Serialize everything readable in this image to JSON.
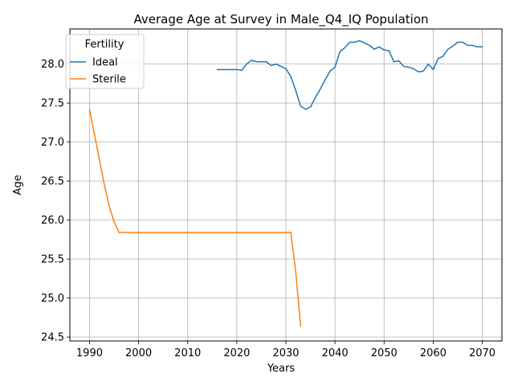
{
  "chart_data": {
    "type": "line",
    "title": "Average Age at Survey in Male_Q4_IQ Population",
    "xlabel": "Years",
    "ylabel": "Age",
    "xlim": [
      1986,
      2074
    ],
    "ylim": [
      24.45,
      28.45
    ],
    "xticks": [
      1990,
      2000,
      2010,
      2020,
      2030,
      2040,
      2050,
      2060,
      2070
    ],
    "yticks": [
      24.5,
      25.0,
      25.5,
      26.0,
      26.5,
      27.0,
      27.5,
      28.0
    ],
    "grid": true,
    "legend": {
      "title": "Fertility",
      "placement": "top-left"
    },
    "series": [
      {
        "name": "Ideal",
        "color": "#1f77b4",
        "x": [
          2016,
          2017,
          2018,
          2019,
          2020,
          2021,
          2022,
          2023,
          2024,
          2025,
          2026,
          2027,
          2028,
          2029,
          2030,
          2031,
          2032,
          2033,
          2034,
          2035,
          2036,
          2037,
          2038,
          2039,
          2040,
          2041,
          2042,
          2043,
          2044,
          2045,
          2046,
          2047,
          2048,
          2049,
          2050,
          2051,
          2052,
          2053,
          2054,
          2055,
          2056,
          2057,
          2058,
          2059,
          2060,
          2061,
          2062,
          2063,
          2064,
          2065,
          2066,
          2067,
          2068,
          2069,
          2070
        ],
        "y": [
          27.93,
          27.93,
          27.93,
          27.93,
          27.93,
          27.92,
          28.0,
          28.05,
          28.03,
          28.03,
          28.03,
          27.98,
          28.0,
          27.97,
          27.94,
          27.84,
          27.66,
          27.46,
          27.42,
          27.45,
          27.57,
          27.68,
          27.8,
          27.91,
          27.96,
          28.16,
          28.21,
          28.28,
          28.28,
          28.3,
          28.27,
          28.24,
          28.19,
          28.22,
          28.18,
          28.17,
          28.03,
          28.04,
          27.97,
          27.96,
          27.94,
          27.9,
          27.91,
          28.0,
          27.93,
          28.07,
          28.1,
          28.19,
          28.23,
          28.28,
          28.28,
          28.24,
          28.24,
          28.22,
          28.22
        ]
      },
      {
        "name": "Sterile",
        "color": "#ff7f0e",
        "x": [
          1990,
          1991,
          1992,
          1993,
          1994,
          1995,
          1996,
          1997,
          2000,
          2005,
          2010,
          2015,
          2020,
          2025,
          2030,
          2031,
          2032,
          2033
        ],
        "y": [
          27.42,
          27.1,
          26.78,
          26.46,
          26.18,
          25.98,
          25.84,
          25.84,
          25.84,
          25.84,
          25.84,
          25.84,
          25.84,
          25.84,
          25.84,
          25.84,
          25.34,
          24.64
        ]
      }
    ]
  }
}
